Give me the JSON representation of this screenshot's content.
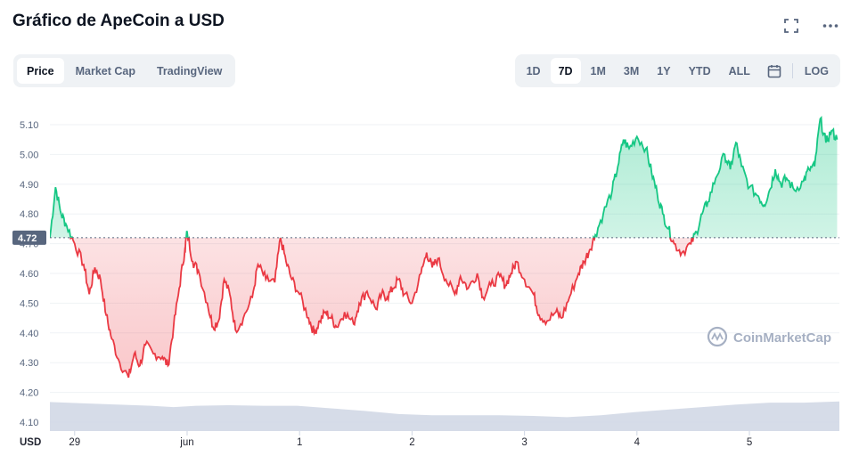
{
  "header": {
    "title": "Gráfico de ApeCoin a USD"
  },
  "tabs_left": [
    {
      "label": "Price",
      "active": true
    },
    {
      "label": "Market Cap",
      "active": false
    },
    {
      "label": "TradingView",
      "active": false
    }
  ],
  "tabs_right": [
    {
      "label": "1D",
      "active": false
    },
    {
      "label": "7D",
      "active": true
    },
    {
      "label": "1M",
      "active": false
    },
    {
      "label": "3M",
      "active": false
    },
    {
      "label": "1Y",
      "active": false
    },
    {
      "label": "YTD",
      "active": false
    },
    {
      "label": "ALL",
      "active": false
    }
  ],
  "log_label": "LOG",
  "icons": {
    "fullscreen": "expand-icon",
    "more": "more-icon",
    "calendar": "calendar-icon"
  },
  "colors": {
    "up": "#16c784",
    "down": "#ea3943",
    "volume": "#cfd6e4",
    "reference": "#58667e"
  },
  "watermark": "CoinMarketCap",
  "chart_data": {
    "type": "line",
    "currency_label": "USD",
    "reference_price": 4.72,
    "reference_label": "4.72",
    "ylim": [
      4.07,
      5.16
    ],
    "y_ticks": [
      4.1,
      4.2,
      4.3,
      4.4,
      4.5,
      4.6,
      4.7,
      4.8,
      4.9,
      5.0,
      5.1
    ],
    "y_tick_labels": [
      "4.10",
      "4.20",
      "4.30",
      "4.40",
      "4.50",
      "4.60",
      "4.70",
      "4.80",
      "4.90",
      "5.00",
      "5.10"
    ],
    "x_ticks": [
      {
        "label": "29",
        "t": 0.22
      },
      {
        "label": "jun",
        "t": 1.22
      },
      {
        "label": "1",
        "t": 2.22
      },
      {
        "label": "2",
        "t": 3.22
      },
      {
        "label": "3",
        "t": 4.22
      },
      {
        "label": "4",
        "t": 5.22
      },
      {
        "label": "5",
        "t": 6.22
      }
    ],
    "x_range": [
      0,
      7.02
    ],
    "grid": true,
    "series": [
      {
        "t": [
          0.0,
          0.05,
          0.1,
          0.15,
          0.22,
          0.3,
          0.35,
          0.4,
          0.45,
          0.5,
          0.55,
          0.62,
          0.7,
          0.75,
          0.8,
          0.85,
          0.92,
          1.0,
          1.05,
          1.1,
          1.15,
          1.2,
          1.22,
          1.27,
          1.32,
          1.4,
          1.45,
          1.5,
          1.55,
          1.6,
          1.65,
          1.72,
          1.8,
          1.85,
          1.92,
          2.0,
          2.05,
          2.1,
          2.15,
          2.22,
          2.3,
          2.35,
          2.4,
          2.45,
          2.5,
          2.55,
          2.62,
          2.7,
          2.75,
          2.82,
          2.9,
          2.95,
          3.0,
          3.05,
          3.1,
          3.15,
          3.22,
          3.3,
          3.35,
          3.4,
          3.45,
          3.52,
          3.6,
          3.65,
          3.72,
          3.8,
          3.85,
          3.92,
          4.0,
          4.05,
          4.1,
          4.15,
          4.22,
          4.3,
          4.35,
          4.42,
          4.5,
          4.55,
          4.62,
          4.7,
          4.75,
          4.8,
          4.85,
          4.92,
          5.0,
          5.05,
          5.1,
          5.15,
          5.22,
          5.3,
          5.35,
          5.4,
          5.45,
          5.5,
          5.55,
          5.62,
          5.7,
          5.75,
          5.8,
          5.85,
          5.92,
          6.0,
          6.05,
          6.1,
          6.15,
          6.22,
          6.3,
          6.35,
          6.4,
          6.45,
          6.5,
          6.55,
          6.62,
          6.7,
          6.75,
          6.8,
          6.85,
          6.9,
          6.95,
          7.0
        ],
        "values": [
          4.72,
          4.89,
          4.8,
          4.76,
          4.7,
          4.63,
          4.53,
          4.62,
          4.58,
          4.46,
          4.38,
          4.3,
          4.25,
          4.33,
          4.29,
          4.36,
          4.33,
          4.32,
          4.29,
          4.42,
          4.55,
          4.68,
          4.74,
          4.64,
          4.61,
          4.5,
          4.42,
          4.44,
          4.58,
          4.53,
          4.41,
          4.45,
          4.52,
          4.63,
          4.58,
          4.57,
          4.72,
          4.64,
          4.58,
          4.53,
          4.45,
          4.4,
          4.44,
          4.47,
          4.45,
          4.42,
          4.47,
          4.43,
          4.5,
          4.54,
          4.48,
          4.53,
          4.52,
          4.55,
          4.58,
          4.53,
          4.5,
          4.6,
          4.67,
          4.62,
          4.65,
          4.58,
          4.53,
          4.59,
          4.55,
          4.6,
          4.52,
          4.56,
          4.59,
          4.56,
          4.6,
          4.64,
          4.58,
          4.53,
          4.46,
          4.44,
          4.47,
          4.45,
          4.52,
          4.6,
          4.64,
          4.68,
          4.73,
          4.8,
          4.88,
          4.96,
          5.05,
          5.02,
          5.06,
          5.02,
          4.94,
          4.87,
          4.8,
          4.75,
          4.7,
          4.67,
          4.7,
          4.74,
          4.8,
          4.84,
          4.92,
          5.0,
          4.95,
          5.04,
          4.96,
          4.89,
          4.86,
          4.83,
          4.88,
          4.95,
          4.9,
          4.92,
          4.88,
          4.91,
          4.95,
          4.96,
          5.12,
          5.04,
          5.08,
          5.05
        ]
      },
      {
        "name": "Volume",
        "t": [
          0.0,
          0.3,
          0.6,
          0.9,
          1.1,
          1.3,
          1.6,
          1.9,
          2.2,
          2.5,
          2.8,
          3.1,
          3.4,
          3.7,
          4.0,
          4.3,
          4.6,
          4.9,
          5.2,
          5.5,
          5.8,
          6.1,
          6.4,
          6.7,
          7.02
        ],
        "values": [
          0.92,
          0.88,
          0.84,
          0.8,
          0.76,
          0.8,
          0.82,
          0.8,
          0.8,
          0.72,
          0.64,
          0.54,
          0.5,
          0.5,
          0.5,
          0.48,
          0.44,
          0.5,
          0.6,
          0.68,
          0.76,
          0.84,
          0.9,
          0.9,
          0.94
        ]
      }
    ]
  }
}
